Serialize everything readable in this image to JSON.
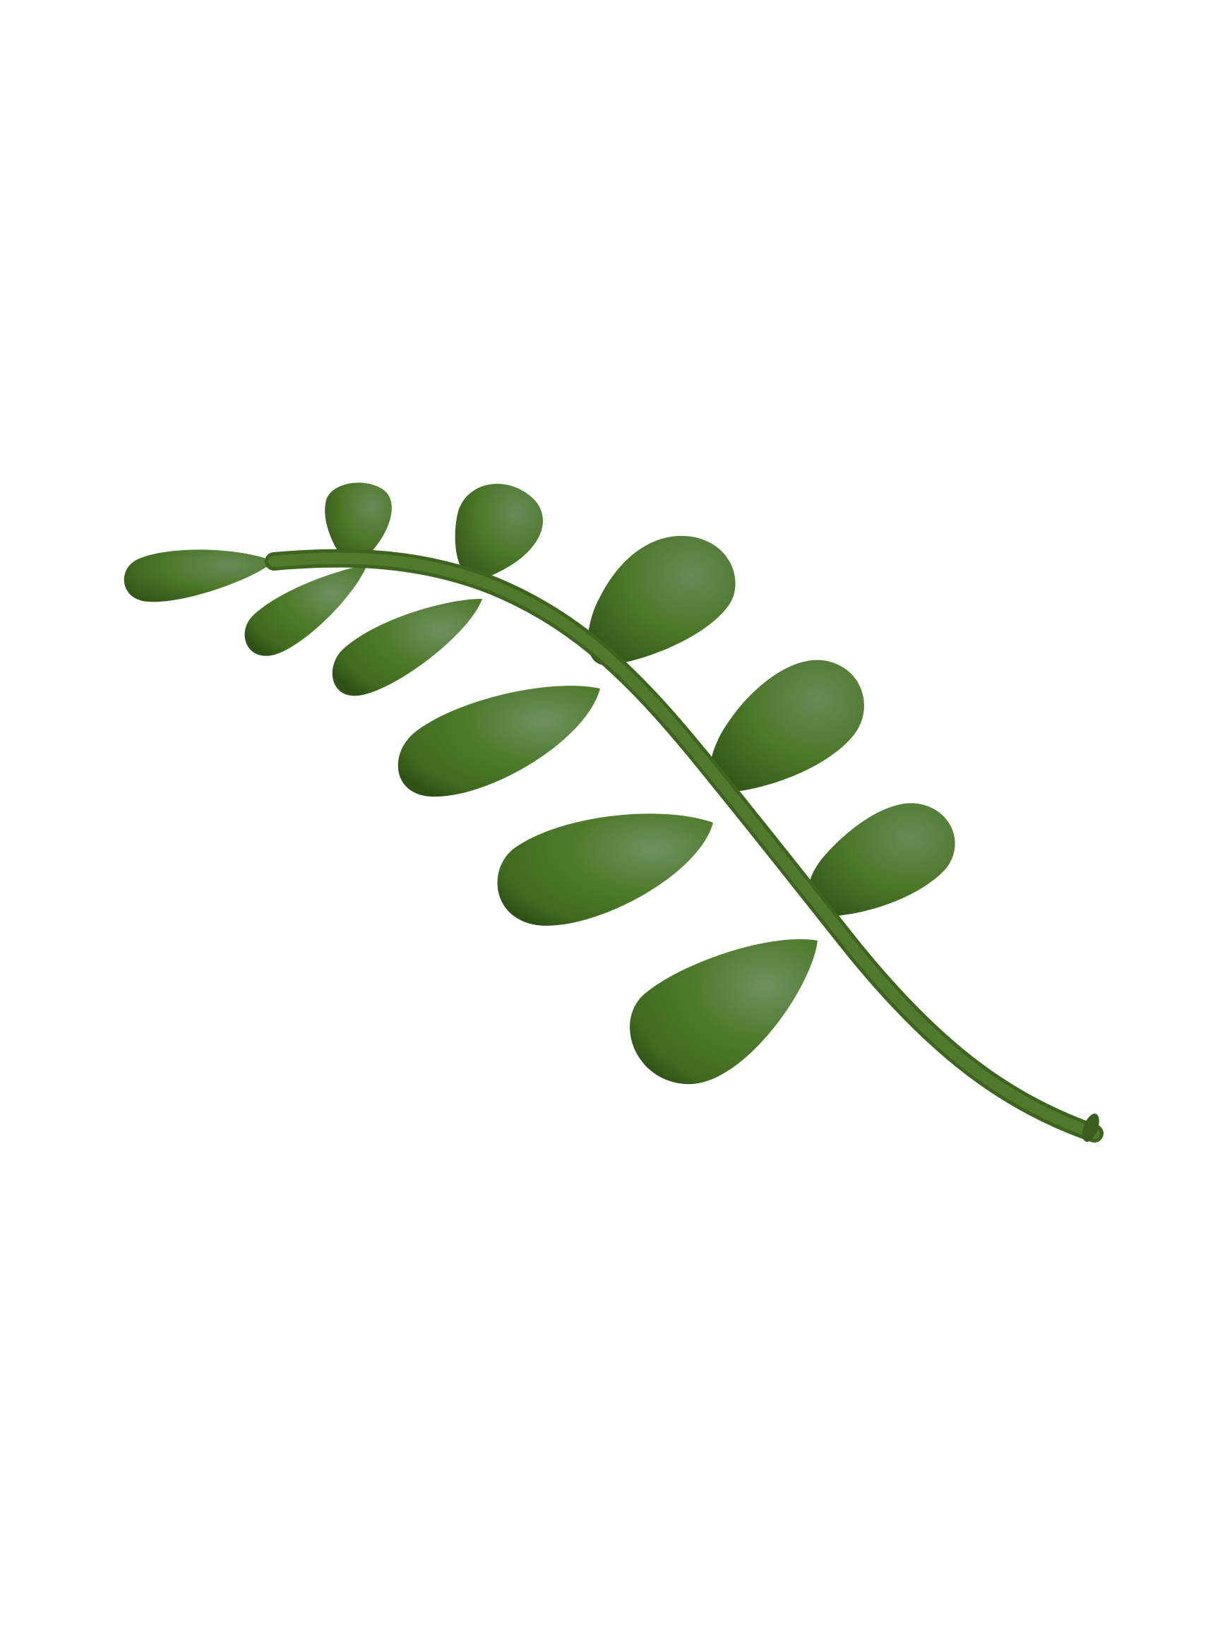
{
  "scene": {
    "subject": "leaf-sprig-3d",
    "background_color": "#ffffff",
    "colors": {
      "stem": "#4a7328",
      "stem_dark": "#3a5e1f",
      "leaf_base": "#4a7726",
      "leaf_highlight": "#6f9060",
      "leaf_shadow": "#2f5216"
    }
  }
}
